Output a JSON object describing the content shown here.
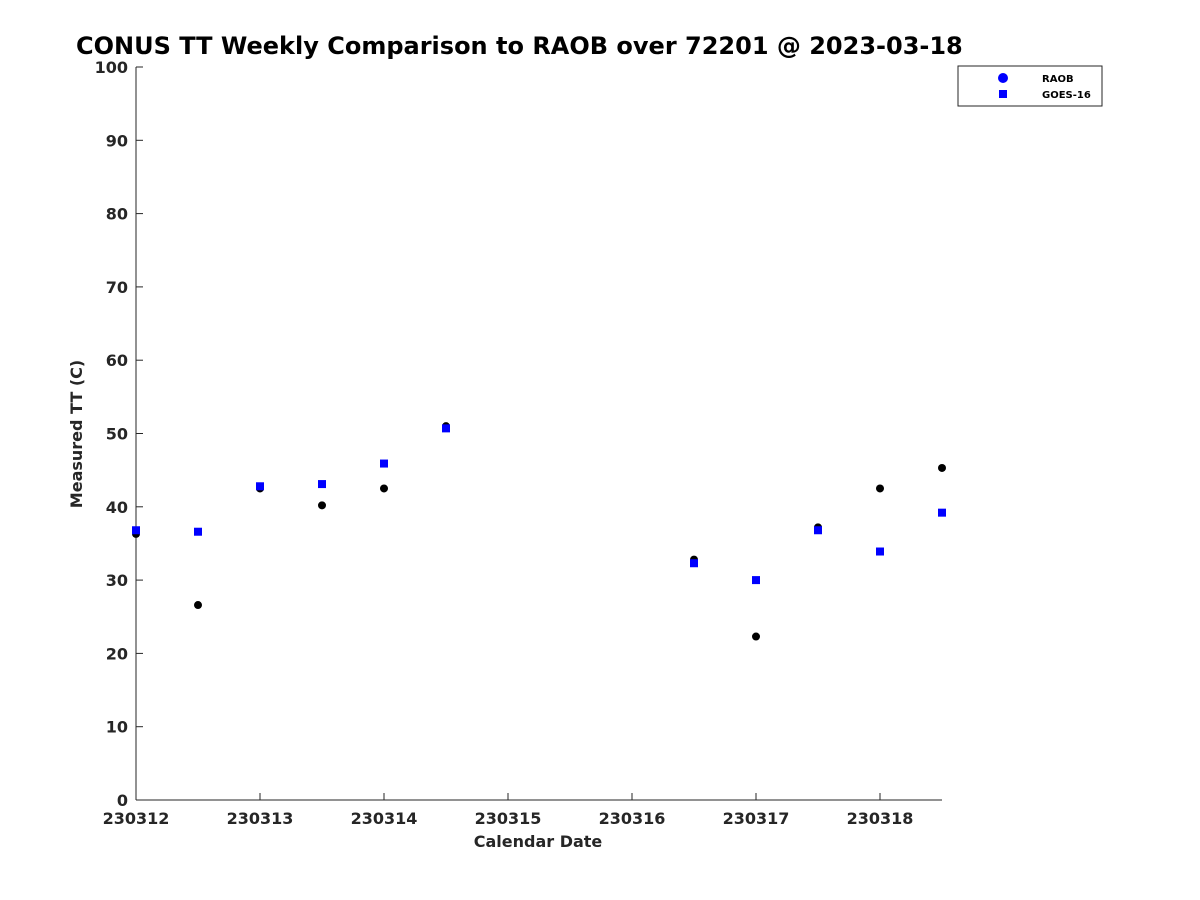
{
  "chart_data": {
    "type": "scatter",
    "title": "CONUS TT Weekly Comparison to RAOB over 72201 @ 2023-03-18",
    "xlabel": "Calendar Date",
    "ylabel": "Measured TT (C)",
    "xlim": [
      230312,
      230318.5
    ],
    "ylim": [
      0,
      100
    ],
    "x_ticks": [
      {
        "value": 230312,
        "label": "230312"
      },
      {
        "value": 230313,
        "label": "230313"
      },
      {
        "value": 230314,
        "label": "230314"
      },
      {
        "value": 230315,
        "label": "230315"
      },
      {
        "value": 230316,
        "label": "230316"
      },
      {
        "value": 230317,
        "label": "230317"
      },
      {
        "value": 230318,
        "label": "230318"
      }
    ],
    "y_ticks": [
      {
        "value": 0,
        "label": "0"
      },
      {
        "value": 10,
        "label": "10"
      },
      {
        "value": 20,
        "label": "20"
      },
      {
        "value": 30,
        "label": "30"
      },
      {
        "value": 40,
        "label": "40"
      },
      {
        "value": 50,
        "label": "50"
      },
      {
        "value": 60,
        "label": "60"
      },
      {
        "value": 70,
        "label": "70"
      },
      {
        "value": 80,
        "label": "80"
      },
      {
        "value": 90,
        "label": "90"
      },
      {
        "value": 100,
        "label": "100"
      }
    ],
    "grid": false,
    "legend_position": "top-right",
    "series": [
      {
        "name": "RAOB",
        "marker": "circle",
        "legend_color": "#0000ff",
        "color": "#000000",
        "points": [
          {
            "x": 230312.0,
            "y": 36.3
          },
          {
            "x": 230312.5,
            "y": 26.6
          },
          {
            "x": 230313.0,
            "y": 42.5
          },
          {
            "x": 230313.5,
            "y": 40.2
          },
          {
            "x": 230314.0,
            "y": 42.5
          },
          {
            "x": 230314.5,
            "y": 51.0
          },
          {
            "x": 230316.5,
            "y": 32.8
          },
          {
            "x": 230317.0,
            "y": 22.3
          },
          {
            "x": 230317.5,
            "y": 37.2
          },
          {
            "x": 230318.0,
            "y": 42.5
          },
          {
            "x": 230318.5,
            "y": 45.3
          }
        ]
      },
      {
        "name": "GOES-16",
        "marker": "square",
        "legend_color": "#0000ff",
        "color": "#0000ff",
        "points": [
          {
            "x": 230312.0,
            "y": 36.8
          },
          {
            "x": 230312.5,
            "y": 36.6
          },
          {
            "x": 230313.0,
            "y": 42.8
          },
          {
            "x": 230313.5,
            "y": 43.1
          },
          {
            "x": 230314.0,
            "y": 45.9
          },
          {
            "x": 230314.5,
            "y": 50.7
          },
          {
            "x": 230316.5,
            "y": 32.3
          },
          {
            "x": 230317.0,
            "y": 30.0
          },
          {
            "x": 230317.5,
            "y": 36.8
          },
          {
            "x": 230318.0,
            "y": 33.9
          },
          {
            "x": 230318.5,
            "y": 39.2
          }
        ]
      }
    ]
  }
}
